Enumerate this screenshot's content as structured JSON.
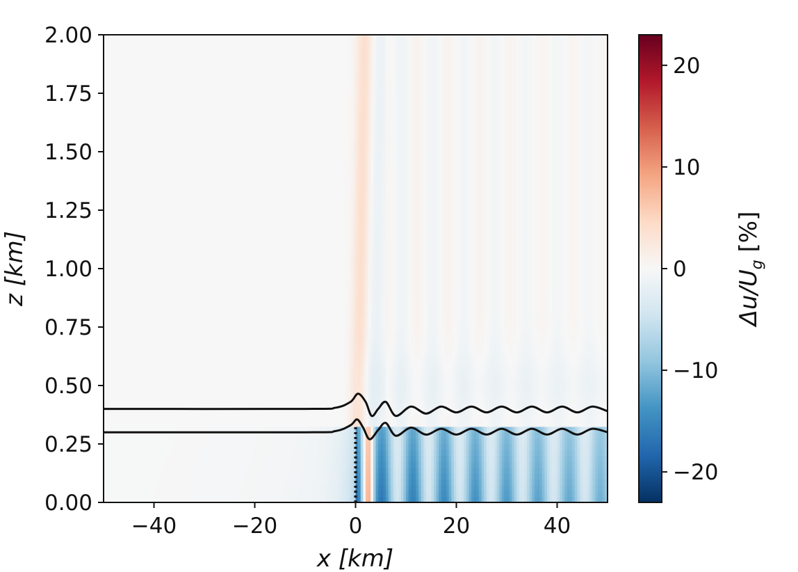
{
  "chart_data": {
    "type": "heatmap",
    "title": "",
    "xlabel": "x [km]",
    "ylabel": "z [km]",
    "xlim": [
      -50,
      50
    ],
    "ylim": [
      0,
      2
    ],
    "xticks": [
      "−40",
      "−20",
      "0",
      "20",
      "40"
    ],
    "xtick_values": [
      -40,
      -20,
      0,
      20,
      40
    ],
    "yticks": [
      "0.00",
      "0.25",
      "0.50",
      "0.75",
      "1.00",
      "1.25",
      "1.50",
      "1.75",
      "2.00"
    ],
    "ytick_values": [
      0,
      0.25,
      0.5,
      0.75,
      1.0,
      1.25,
      1.5,
      1.75,
      2.0
    ],
    "colorbar": {
      "label": "Δu/U_g [%]",
      "label_main": "Δu/U",
      "label_sub": "g",
      "label_suffix": " [%]",
      "range": [
        -23,
        23
      ],
      "ticks": [
        "20",
        "10",
        "0",
        "−10",
        "−20"
      ],
      "tick_values": [
        20,
        10,
        0,
        -10,
        -20
      ],
      "colormap": "RdBu_r",
      "colors": [
        "#053061",
        "#2166ac",
        "#4393c3",
        "#92c5de",
        "#d1e5f0",
        "#f7f7f7",
        "#fddbc7",
        "#f4a582",
        "#d6604d",
        "#b2182b",
        "#67001f"
      ]
    },
    "lines": [
      {
        "name": "",
        "color": "#111111",
        "points": [
          [
            -50,
            0.4
          ],
          [
            -10,
            0.4
          ],
          [
            -4,
            0.405
          ],
          [
            -1,
            0.43
          ],
          [
            0.5,
            0.465
          ],
          [
            2,
            0.43
          ],
          [
            3.2,
            0.37
          ],
          [
            4.5,
            0.4
          ],
          [
            6,
            0.43
          ],
          [
            8,
            0.37
          ],
          [
            11,
            0.41
          ],
          [
            14,
            0.38
          ],
          [
            17,
            0.41
          ],
          [
            20,
            0.385
          ],
          [
            23,
            0.41
          ],
          [
            26,
            0.385
          ],
          [
            29,
            0.41
          ],
          [
            32,
            0.385
          ],
          [
            35,
            0.41
          ],
          [
            38,
            0.385
          ],
          [
            41,
            0.41
          ],
          [
            44,
            0.385
          ],
          [
            47,
            0.41
          ],
          [
            50,
            0.39
          ]
        ]
      },
      {
        "name": "",
        "color": "#111111",
        "points": [
          [
            -50,
            0.3
          ],
          [
            -10,
            0.3
          ],
          [
            -4,
            0.305
          ],
          [
            -1,
            0.33
          ],
          [
            0.3,
            0.355
          ],
          [
            1.5,
            0.32
          ],
          [
            2.8,
            0.27
          ],
          [
            4.5,
            0.31
          ],
          [
            6,
            0.34
          ],
          [
            8,
            0.285
          ],
          [
            11,
            0.32
          ],
          [
            14,
            0.29
          ],
          [
            17,
            0.315
          ],
          [
            20,
            0.29
          ],
          [
            23,
            0.315
          ],
          [
            26,
            0.29
          ],
          [
            29,
            0.315
          ],
          [
            32,
            0.29
          ],
          [
            35,
            0.315
          ],
          [
            38,
            0.29
          ],
          [
            41,
            0.315
          ],
          [
            44,
            0.29
          ],
          [
            47,
            0.315
          ],
          [
            50,
            0.3
          ]
        ]
      },
      {
        "name": "",
        "color": "#111111",
        "style": "dotted",
        "points": [
          [
            0,
            0
          ],
          [
            0,
            0.33
          ]
        ]
      }
    ],
    "field_features": {
      "background": 0,
      "upper_positive_band": {
        "x": 0.5,
        "z_range": [
          0.3,
          2.0
        ],
        "value": 4
      },
      "upper_negative_band": {
        "x": 3.5,
        "z_range": [
          0.3,
          2.0
        ],
        "value": -1.5
      },
      "lower_layer_z_max": 0.33,
      "lower_layer_min": -20,
      "lower_layer_wavelength_km": 6.2
    }
  }
}
